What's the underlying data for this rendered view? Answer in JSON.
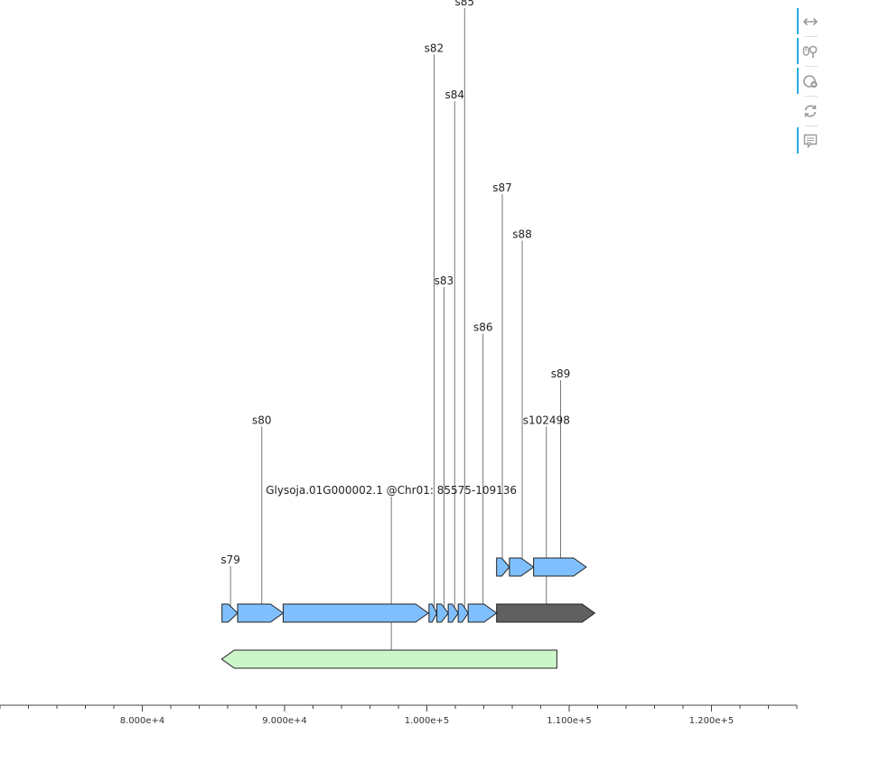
{
  "chart_data": {
    "type": "gene-track",
    "xlim": [
      70000,
      126000
    ],
    "x_ticks": [
      {
        "value": 80000,
        "label": "8.000e+4"
      },
      {
        "value": 90000,
        "label": "9.000e+4"
      },
      {
        "value": 100000,
        "label": "1.000e+5"
      },
      {
        "value": 110000,
        "label": "1.100e+5"
      },
      {
        "value": 120000,
        "label": "1.200e+5"
      }
    ],
    "minor_tick_step": 2000,
    "tracks": [
      {
        "row": 0,
        "start": 85575,
        "end": 109136,
        "strand": "-",
        "color": "#ccf5c8"
      },
      {
        "row": 1,
        "start": 85600,
        "end": 86700,
        "strand": "+",
        "color": "#7fbfff"
      },
      {
        "row": 1,
        "start": 86700,
        "end": 89900,
        "strand": "+",
        "color": "#7fbfff"
      },
      {
        "row": 1,
        "start": 89900,
        "end": 100100,
        "strand": "+",
        "color": "#7fbfff"
      },
      {
        "row": 1,
        "start": 100150,
        "end": 100700,
        "strand": "+",
        "color": "#7fbfff"
      },
      {
        "row": 1,
        "start": 100700,
        "end": 101500,
        "strand": "+",
        "color": "#7fbfff"
      },
      {
        "row": 1,
        "start": 101500,
        "end": 102200,
        "strand": "+",
        "color": "#7fbfff"
      },
      {
        "row": 1,
        "start": 102200,
        "end": 102900,
        "strand": "+",
        "color": "#7fbfff"
      },
      {
        "row": 1,
        "start": 102900,
        "end": 104900,
        "strand": "+",
        "color": "#7fbfff"
      },
      {
        "row": 1,
        "start": 104900,
        "end": 111800,
        "strand": "+",
        "color": "#606060"
      },
      {
        "row": 2,
        "start": 104900,
        "end": 105800,
        "strand": "+",
        "color": "#7fbfff"
      },
      {
        "row": 2,
        "start": 105800,
        "end": 107500,
        "strand": "+",
        "color": "#7fbfff"
      },
      {
        "row": 2,
        "start": 107500,
        "end": 111200,
        "strand": "+",
        "color": "#7fbfff"
      }
    ],
    "annotations": [
      {
        "label": "Glysoja.01G000002.1 @Chr01: 85575-109136",
        "x": 97500,
        "row": 0,
        "level": 1.5
      },
      {
        "label": "s79",
        "x": 86200,
        "row": 1,
        "level": 0
      },
      {
        "label": "s80",
        "x": 88400,
        "row": 1,
        "level": 3
      },
      {
        "label": "s82",
        "x": 100500,
        "row": 1,
        "level": 11
      },
      {
        "label": "s83",
        "x": 101200,
        "row": 1,
        "level": 6
      },
      {
        "label": "s84",
        "x": 101950,
        "row": 1,
        "level": 10
      },
      {
        "label": "s85",
        "x": 102650,
        "row": 1,
        "level": 12
      },
      {
        "label": "s86",
        "x": 103950,
        "row": 1,
        "level": 5
      },
      {
        "label": "s102498",
        "x": 108400,
        "row": 1,
        "level": 3
      },
      {
        "label": "s87",
        "x": 105300,
        "row": 2,
        "level": 8
      },
      {
        "label": "s88",
        "x": 106700,
        "row": 2,
        "level": 7
      },
      {
        "label": "s89",
        "x": 109400,
        "row": 2,
        "level": 4
      }
    ]
  },
  "toolbar": {
    "tools": [
      {
        "name": "xpan-tool",
        "icon": "horizontal-pan-icon",
        "active": true
      },
      {
        "name": "xwheel-zoom-tool",
        "icon": "wheel-zoom-icon",
        "active": true
      },
      {
        "name": "xzoom-in-tool",
        "icon": "zoom-in-icon",
        "active": true
      },
      {
        "name": "reset-tool",
        "icon": "reset-icon",
        "active": false
      },
      {
        "name": "hover-tool",
        "icon": "hover-icon",
        "active": true
      }
    ]
  }
}
